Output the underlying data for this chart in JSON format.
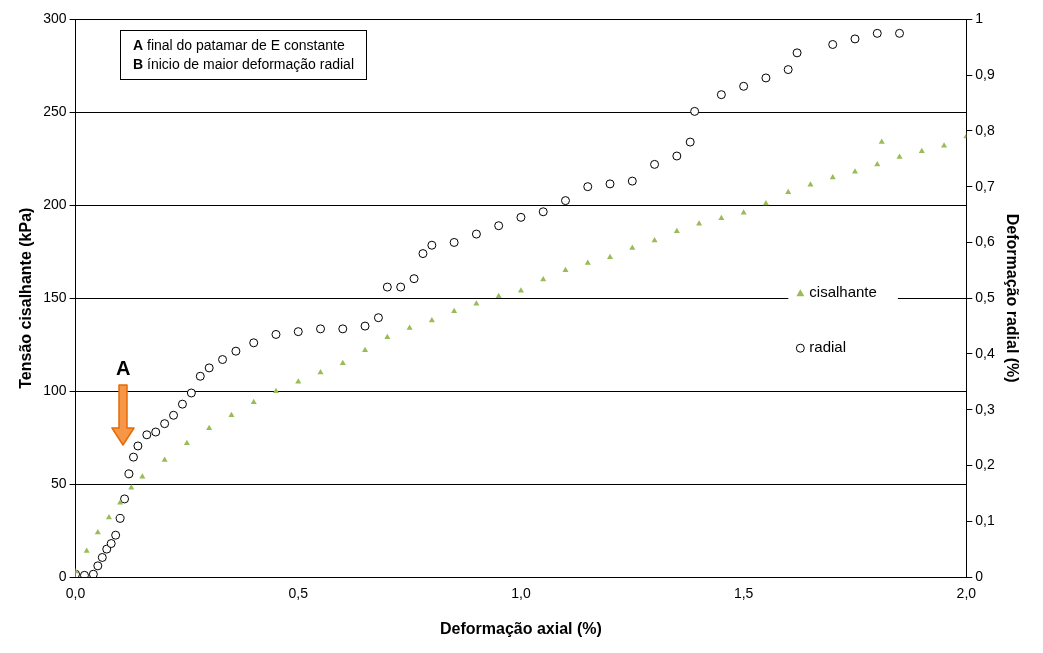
{
  "chart_data": {
    "type": "scatter",
    "xlabel": "Deformação axial (%)",
    "ylabel": "Tensão cisalhante (kPa)",
    "y2label": "Deformação radial (%)",
    "xlim": [
      0,
      2
    ],
    "xticks": [
      {
        "value": 0,
        "label": "0,0"
      },
      {
        "value": 0.5,
        "label": "0,5"
      },
      {
        "value": 1,
        "label": "1,0"
      },
      {
        "value": 1.5,
        "label": "1,5"
      },
      {
        "value": 2,
        "label": "2,0"
      }
    ],
    "ylim": [
      0,
      300
    ],
    "yticks": [
      0,
      50,
      100,
      150,
      200,
      250,
      300
    ],
    "y2lim": [
      0,
      1
    ],
    "y2ticks": [
      0,
      {
        "value": 0.1,
        "label": "0,1"
      },
      {
        "value": 0.2,
        "label": "0,2"
      },
      {
        "value": 0.3,
        "label": "0,3"
      },
      {
        "value": 0.4,
        "label": "0,4"
      },
      {
        "value": 0.5,
        "label": "0,5"
      },
      {
        "value": 0.6,
        "label": "0,6"
      },
      {
        "value": 0.7,
        "label": "0,7"
      },
      {
        "value": 0.8,
        "label": "0,8"
      },
      {
        "value": 0.9,
        "label": "0,9"
      },
      1
    ],
    "grid": "y",
    "legend": "right",
    "series": [
      {
        "name": "cisalhante",
        "color": "#9bbb59",
        "marker": "triangle",
        "x": [
          0,
          0.025,
          0.05,
          0.075,
          0.1,
          0.125,
          0.15,
          0.2,
          0.25,
          0.3,
          0.35,
          0.4,
          0.45,
          0.5,
          0.55,
          0.6,
          0.65,
          0.7,
          0.75,
          0.8,
          0.85,
          0.9,
          0.95,
          1.0,
          1.05,
          1.1,
          1.15,
          1.2,
          1.25,
          1.3,
          1.35,
          1.4,
          1.45,
          1.5,
          1.55,
          1.6,
          1.65,
          1.7,
          1.75,
          1.8,
          1.81,
          1.85,
          1.9,
          1.95,
          2.0
        ],
        "values": [
          3,
          14,
          24,
          32,
          40,
          48,
          54,
          63,
          72,
          80,
          87,
          94,
          100,
          105,
          110,
          115,
          122,
          129,
          134,
          138,
          143,
          147,
          151,
          154,
          160,
          165,
          169,
          172,
          177,
          181,
          186,
          190,
          193,
          196,
          201,
          207,
          211,
          215,
          218,
          222,
          234,
          226,
          229,
          232,
          237
        ]
      },
      {
        "name": "radial",
        "color": "#000000",
        "marker": "circle",
        "axis": "y2",
        "x": [
          0,
          0.02,
          0.04,
          0.05,
          0.06,
          0.07,
          0.08,
          0.09,
          0.1,
          0.11,
          0.12,
          0.13,
          0.14,
          0.16,
          0.18,
          0.2,
          0.22,
          0.24,
          0.26,
          0.28,
          0.3,
          0.33,
          0.36,
          0.4,
          0.45,
          0.5,
          0.55,
          0.6,
          0.65,
          0.68,
          0.7,
          0.73,
          0.76,
          0.78,
          0.8,
          0.85,
          0.9,
          0.95,
          1.0,
          1.05,
          1.1,
          1.15,
          1.2,
          1.25,
          1.3,
          1.35,
          1.38,
          1.39,
          1.45,
          1.5,
          1.55,
          1.6,
          1.62,
          1.7,
          1.75,
          1.8,
          1.85
        ],
        "values": [
          0.005,
          0.003,
          0.005,
          0.02,
          0.035,
          0.05,
          0.06,
          0.075,
          0.105,
          0.14,
          0.185,
          0.215,
          0.235,
          0.255,
          0.26,
          0.275,
          0.29,
          0.31,
          0.33,
          0.36,
          0.375,
          0.39,
          0.405,
          0.42,
          0.435,
          0.44,
          0.445,
          0.445,
          0.45,
          0.465,
          0.52,
          0.52,
          0.535,
          0.58,
          0.595,
          0.6,
          0.615,
          0.63,
          0.645,
          0.655,
          0.675,
          0.7,
          0.705,
          0.71,
          0.74,
          0.755,
          0.78,
          0.835,
          0.865,
          0.88,
          0.895,
          0.91,
          0.94,
          0.955,
          0.965,
          0.975,
          0.975
        ]
      }
    ],
    "annotations": [
      "A final do patamar de E constante",
      "B ínicio de maior deformação radial",
      "A"
    ]
  }
}
